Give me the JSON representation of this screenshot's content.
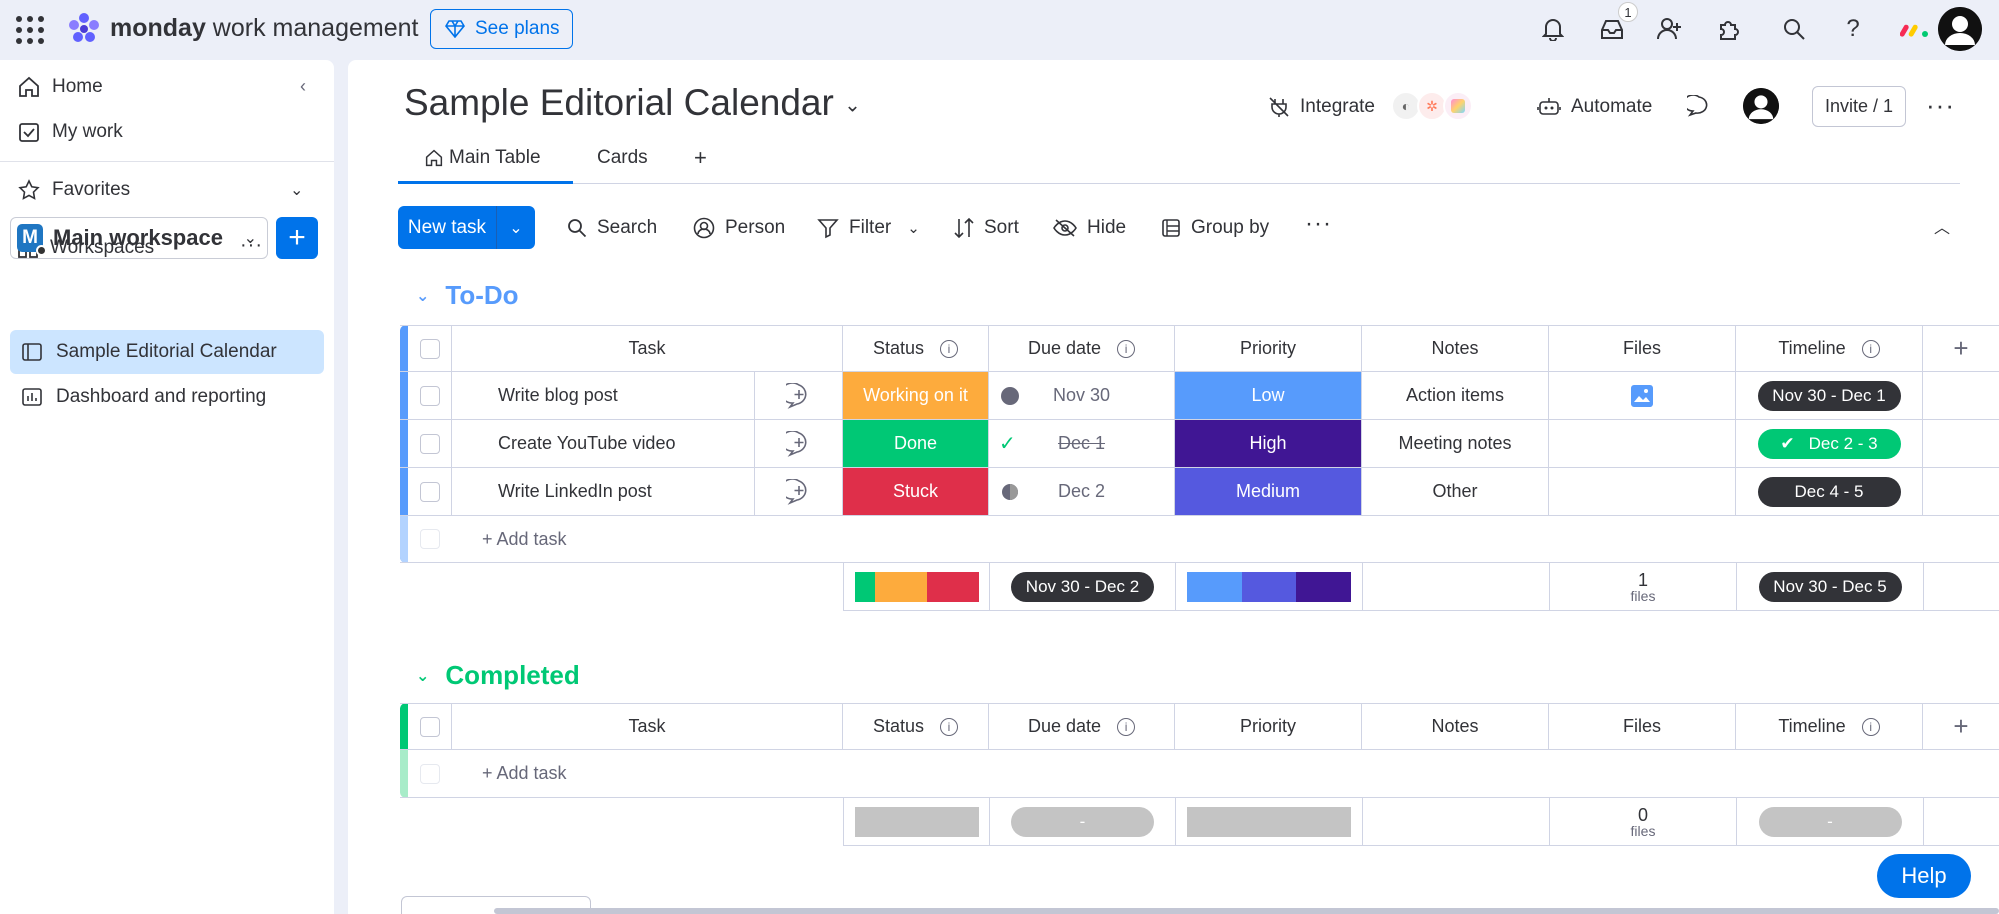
{
  "topbar": {
    "brand_bold": "monday",
    "brand_rest": " work management",
    "see_plans": "See plans",
    "inbox_badge": "1"
  },
  "sidebar": {
    "home": "Home",
    "my_work": "My work",
    "favorites": "Favorites",
    "workspaces": "Workspaces",
    "workspace_letter": "M",
    "workspace_name": "Main workspace",
    "boards": [
      {
        "label": "Sample Editorial Calendar"
      },
      {
        "label": "Dashboard and reporting"
      }
    ]
  },
  "board": {
    "title": "Sample Editorial Calendar",
    "integrate": "Integrate",
    "automate": "Automate",
    "invite": "Invite / 1",
    "tabs": [
      {
        "label": "Main Table"
      },
      {
        "label": "Cards"
      },
      {
        "label": "+"
      }
    ]
  },
  "toolbar": {
    "new_task": "New task",
    "search": "Search",
    "person": "Person",
    "filter": "Filter",
    "sort": "Sort",
    "hide": "Hide",
    "group_by": "Group by"
  },
  "columns": {
    "task": "Task",
    "status": "Status",
    "due_date": "Due date",
    "priority": "Priority",
    "notes": "Notes",
    "files": "Files",
    "timeline": "Timeline",
    "add": "+"
  },
  "colors": {
    "accent": "#0073ea",
    "todo_group": "#579bfc",
    "completed_group": "#00c875",
    "working_on_it": "#fdab3d",
    "done": "#00c875",
    "stuck": "#df2f4a",
    "low": "#579bfc",
    "high": "#401694",
    "medium": "#5559df"
  },
  "groups": {
    "todo": {
      "title": "To-Do",
      "rows": [
        {
          "task": "Write blog post",
          "status": "Working on it",
          "due": "Nov 30",
          "priority": "Low",
          "notes": "Action items",
          "timeline": "Nov 30 - Dec 1"
        },
        {
          "task": "Create YouTube video",
          "status": "Done",
          "due": "Dec 1",
          "priority": "High",
          "notes": "Meeting notes",
          "timeline": "Dec 2 - 3"
        },
        {
          "task": "Write LinkedIn post",
          "status": "Stuck",
          "due": "Dec 2",
          "priority": "Medium",
          "notes": "Other",
          "timeline": "Dec 4 - 5"
        }
      ],
      "add_task": "+ Add task",
      "summary": {
        "due_range": "Nov 30 - Dec 2",
        "files_count": "1",
        "files_label": "files",
        "timeline_range": "Nov 30 - Dec 5"
      }
    },
    "completed": {
      "title": "Completed",
      "add_task": "+ Add task",
      "summary": {
        "due_range": "-",
        "files_count": "0",
        "files_label": "files",
        "timeline_range": "-"
      }
    }
  },
  "help": "Help"
}
